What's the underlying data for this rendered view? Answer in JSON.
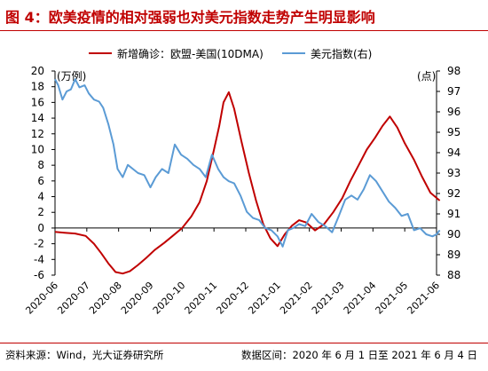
{
  "header": {
    "title": "图 4：欧美疫情的相对强弱也对美元指数走势产生明显影响"
  },
  "footer": {
    "source": "资料来源：Wind，光大证券研究所",
    "date_range": "数据区间：2020 年 6 月 1 日至 2021 年 6 月 4 日"
  },
  "colors": {
    "title": "#c00000",
    "cases_line": "#c00000",
    "dxy_line": "#5b9bd5",
    "axis": "#000000"
  },
  "chart_data": {
    "type": "line",
    "title": "",
    "legend_placement": "top",
    "grid": false,
    "x_ticks": [
      "2020-06",
      "2020-07",
      "2020-08",
      "2020-09",
      "2020-10",
      "2020-11",
      "2020-12",
      "2021-01",
      "2021-02",
      "2021-03",
      "2021-04",
      "2021-05",
      "2021-06"
    ],
    "left_axis": {
      "unit": "(万例)",
      "ylim": [
        -6,
        20
      ],
      "ticks": [
        -6,
        -4,
        -2,
        0,
        2,
        4,
        6,
        8,
        10,
        12,
        14,
        16,
        18,
        20
      ]
    },
    "right_axis": {
      "unit": "(点)",
      "ylim": [
        88,
        98
      ],
      "ticks": [
        88,
        89,
        90,
        91,
        92,
        93,
        94,
        95,
        96,
        97,
        98
      ]
    },
    "series": [
      {
        "name": "新增确诊：欧盟-美国(10DMA)",
        "axis": "left",
        "x": [
          "2020-06-01",
          "2020-06-10",
          "2020-06-20",
          "2020-06-30",
          "2020-07-08",
          "2020-07-15",
          "2020-07-22",
          "2020-07-29",
          "2020-08-05",
          "2020-08-12",
          "2020-08-20",
          "2020-08-28",
          "2020-09-05",
          "2020-09-14",
          "2020-09-22",
          "2020-10-01",
          "2020-10-10",
          "2020-10-18",
          "2020-10-25",
          "2020-11-01",
          "2020-11-06",
          "2020-11-10",
          "2020-11-15",
          "2020-11-20",
          "2020-11-27",
          "2020-12-04",
          "2020-12-11",
          "2020-12-18",
          "2020-12-25",
          "2021-01-01",
          "2021-01-08",
          "2021-01-15",
          "2021-01-22",
          "2021-01-29",
          "2021-02-06",
          "2021-02-14",
          "2021-02-22",
          "2021-03-02",
          "2021-03-10",
          "2021-03-18",
          "2021-03-26",
          "2021-04-03",
          "2021-04-10",
          "2021-04-17",
          "2021-04-24",
          "2021-05-01",
          "2021-05-10",
          "2021-05-18",
          "2021-05-26",
          "2021-06-04"
        ],
        "values": [
          -0.5,
          -0.6,
          -0.7,
          -1.0,
          -2.0,
          -3.2,
          -4.5,
          -5.6,
          -5.8,
          -5.5,
          -4.7,
          -3.8,
          -2.8,
          -1.9,
          -1.0,
          0.0,
          1.5,
          3.3,
          6.0,
          10.0,
          13.0,
          16.0,
          17.3,
          15.2,
          11.0,
          7.0,
          3.5,
          0.5,
          -1.3,
          -2.3,
          -0.8,
          0.3,
          1.0,
          0.7,
          -0.3,
          0.5,
          2.0,
          3.8,
          6.0,
          8.0,
          10.0,
          11.5,
          13.0,
          14.2,
          12.8,
          10.8,
          8.7,
          6.5,
          4.5,
          3.5
        ]
      },
      {
        "name": "美元指数(右)",
        "axis": "right",
        "x": [
          "2020-06-01",
          "2020-06-04",
          "2020-06-08",
          "2020-06-12",
          "2020-06-16",
          "2020-06-20",
          "2020-06-24",
          "2020-06-29",
          "2020-07-03",
          "2020-07-08",
          "2020-07-13",
          "2020-07-17",
          "2020-07-22",
          "2020-07-27",
          "2020-07-31",
          "2020-08-05",
          "2020-08-10",
          "2020-08-15",
          "2020-08-20",
          "2020-08-26",
          "2020-09-01",
          "2020-09-06",
          "2020-09-12",
          "2020-09-18",
          "2020-09-24",
          "2020-09-30",
          "2020-10-06",
          "2020-10-12",
          "2020-10-18",
          "2020-10-24",
          "2020-10-30",
          "2020-11-05",
          "2020-11-10",
          "2020-11-15",
          "2020-11-20",
          "2020-11-26",
          "2020-12-02",
          "2020-12-08",
          "2020-12-14",
          "2020-12-20",
          "2020-12-26",
          "2021-01-01",
          "2021-01-06",
          "2021-01-11",
          "2021-01-16",
          "2021-01-22",
          "2021-01-28",
          "2021-02-03",
          "2021-02-09",
          "2021-02-15",
          "2021-02-21",
          "2021-02-27",
          "2021-03-05",
          "2021-03-11",
          "2021-03-17",
          "2021-03-23",
          "2021-03-29",
          "2021-04-04",
          "2021-04-10",
          "2021-04-16",
          "2021-04-22",
          "2021-04-28",
          "2021-05-04",
          "2021-05-10",
          "2021-05-16",
          "2021-05-22",
          "2021-05-28",
          "2021-06-01",
          "2021-06-04"
        ],
        "values": [
          97.6,
          97.3,
          96.6,
          97.0,
          97.1,
          97.6,
          97.2,
          97.3,
          96.9,
          96.6,
          96.5,
          96.2,
          95.4,
          94.4,
          93.2,
          92.8,
          93.4,
          93.2,
          93.0,
          92.9,
          92.3,
          92.8,
          93.2,
          93.0,
          94.4,
          93.9,
          93.7,
          93.4,
          93.2,
          92.8,
          93.9,
          93.2,
          92.8,
          92.6,
          92.5,
          91.9,
          91.1,
          90.8,
          90.7,
          90.3,
          90.2,
          89.9,
          89.4,
          90.2,
          90.3,
          90.5,
          90.4,
          91.0,
          90.6,
          90.4,
          90.1,
          90.9,
          91.7,
          91.9,
          91.7,
          92.2,
          92.9,
          92.6,
          92.1,
          91.6,
          91.3,
          90.9,
          91.0,
          90.2,
          90.3,
          90.0,
          89.9,
          90.0,
          90.2
        ]
      }
    ]
  }
}
